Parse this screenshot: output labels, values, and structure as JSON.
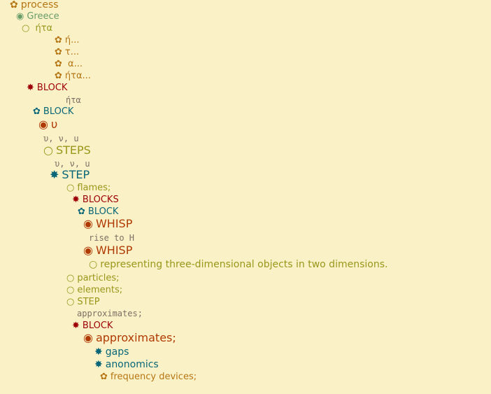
{
  "colors": {
    "background": "#fbf1c7",
    "orange": "#b57614",
    "green": "#689d6a",
    "olive": "#98971a",
    "red": "#9d0006",
    "teal": "#076678",
    "rust": "#af3a03",
    "gray": "#7c6f64"
  },
  "tree": [
    {
      "icon": "✿",
      "icon_name": "flower-icon",
      "text": "process",
      "color": "orange"
    },
    {
      "icon": "◉",
      "icon_name": "filled-circle-icon",
      "text": "Greece",
      "color": "green"
    },
    {
      "icon": "○",
      "icon_name": "hollow-circle-icon",
      "text": " ήτα",
      "color": "olive"
    },
    {
      "icon": "✿",
      "icon_name": "flower-icon",
      "text": "ή...",
      "color": "orange"
    },
    {
      "icon": "✿",
      "icon_name": "flower-icon",
      "text": "τ...",
      "color": "orange"
    },
    {
      "icon": "✿",
      "icon_name": "flower-icon",
      "text": " α...",
      "color": "orange"
    },
    {
      "icon": "✿",
      "icon_name": "flower-icon",
      "text": "ήτα...",
      "color": "orange"
    },
    {
      "icon": "✸",
      "icon_name": "star-burst-icon",
      "text": "BLOCK",
      "color": "red"
    },
    {
      "icon": "",
      "icon_name": "",
      "text": "ήτα",
      "color": "gray"
    },
    {
      "icon": "✿",
      "icon_name": "flower-icon",
      "text": "BLOCK",
      "color": "teal"
    },
    {
      "icon": "◉",
      "icon_name": "filled-circle-icon",
      "text": "υ",
      "color": "rust"
    },
    {
      "icon": "",
      "icon_name": "",
      "text": "υ, ν, u",
      "color": "gray"
    },
    {
      "icon": "○",
      "icon_name": "hollow-circle-icon",
      "text": "STEPS",
      "color": "olive"
    },
    {
      "icon": "",
      "icon_name": "",
      "text": "υ, ν, u",
      "color": "gray"
    },
    {
      "icon": "✸",
      "icon_name": "star-burst-icon",
      "text": "STEP",
      "color": "teal"
    },
    {
      "icon": "○",
      "icon_name": "hollow-circle-icon",
      "text": "flames;",
      "color": "olive"
    },
    {
      "icon": "✸",
      "icon_name": "star-burst-icon",
      "text": "BLOCKS",
      "color": "red"
    },
    {
      "icon": "✿",
      "icon_name": "flower-icon",
      "text": "BLOCK",
      "color": "teal"
    },
    {
      "icon": "◉",
      "icon_name": "filled-circle-icon",
      "text": "WHISP",
      "color": "rust"
    },
    {
      "icon": "",
      "icon_name": "",
      "text": "rise to H",
      "color": "gray"
    },
    {
      "icon": "◉",
      "icon_name": "filled-circle-icon",
      "text": "WHISP",
      "color": "rust"
    },
    {
      "icon": "○",
      "icon_name": "hollow-circle-icon",
      "text": "representing three-dimensional objects in two dimensions.",
      "color": "olive"
    },
    {
      "icon": "○",
      "icon_name": "hollow-circle-icon",
      "text": "particles;",
      "color": "olive"
    },
    {
      "icon": "○",
      "icon_name": "hollow-circle-icon",
      "text": "elements;",
      "color": "olive"
    },
    {
      "icon": "○",
      "icon_name": "hollow-circle-icon",
      "text": "STEP",
      "color": "olive"
    },
    {
      "icon": "",
      "icon_name": "",
      "text": "approximates;",
      "color": "gray"
    },
    {
      "icon": "✸",
      "icon_name": "star-burst-icon",
      "text": "BLOCK",
      "color": "red"
    },
    {
      "icon": "◉",
      "icon_name": "filled-circle-icon",
      "text": "approximates;",
      "color": "rust"
    },
    {
      "icon": "✸",
      "icon_name": "star-burst-icon",
      "text": "gaps",
      "color": "teal"
    },
    {
      "icon": "✸",
      "icon_name": "star-burst-icon",
      "text": "anonomics",
      "color": "teal"
    },
    {
      "icon": "✿",
      "icon_name": "flower-icon",
      "text": "frequency devices;",
      "color": "orange"
    }
  ]
}
